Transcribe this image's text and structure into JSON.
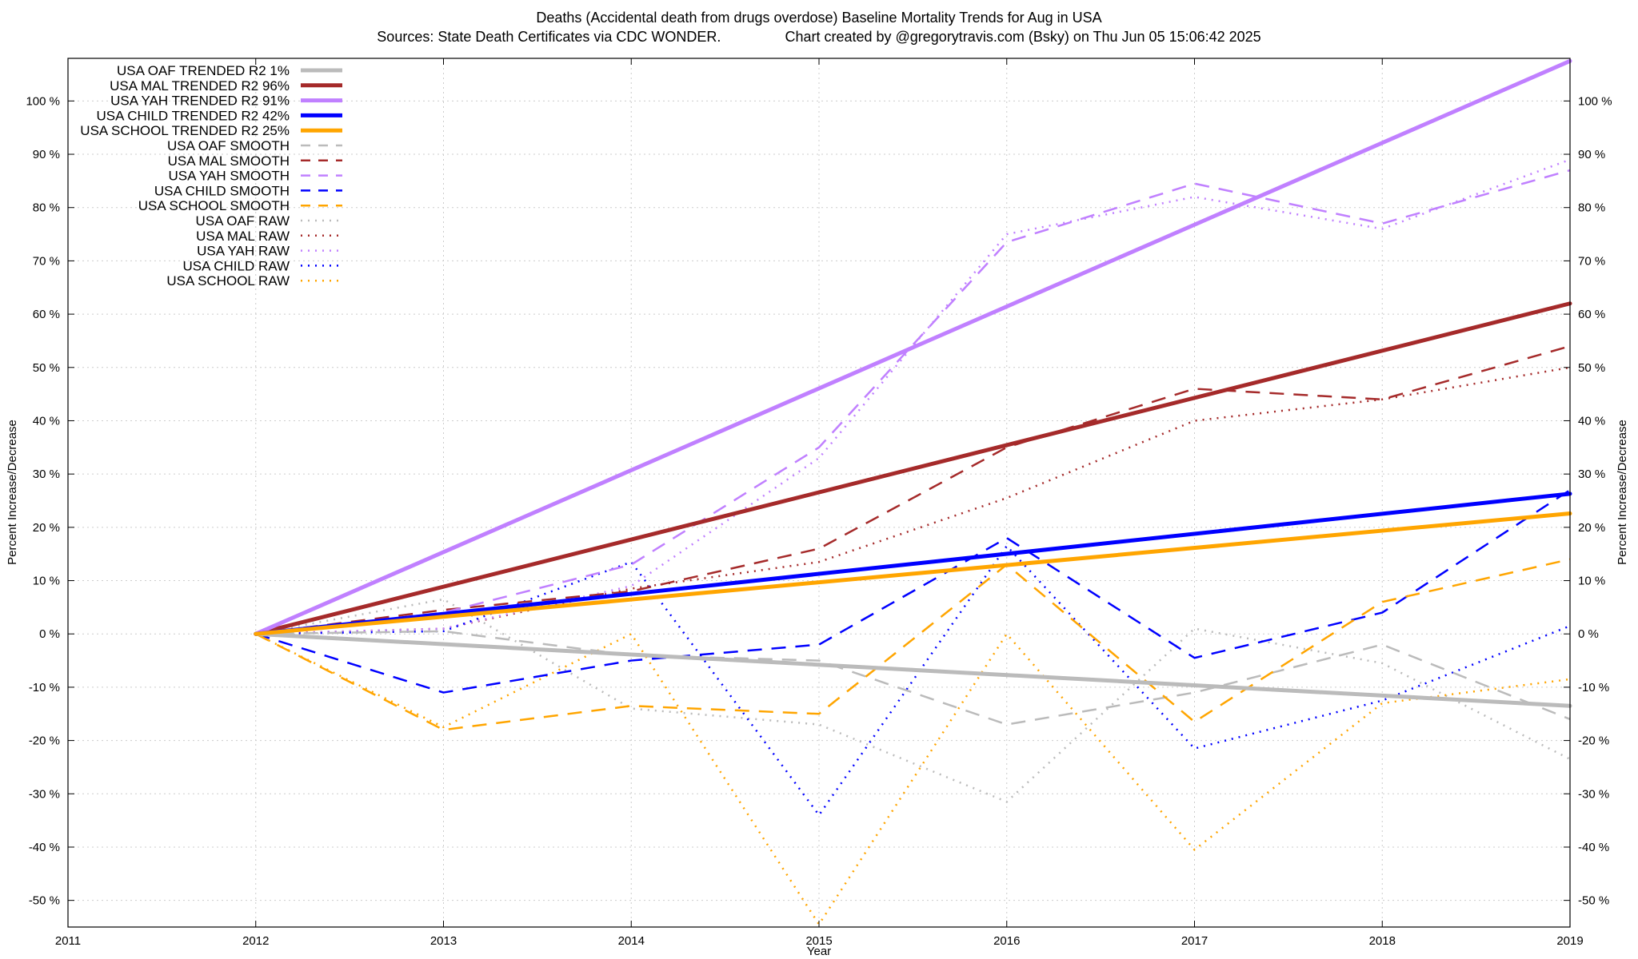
{
  "chart_data": {
    "type": "line",
    "title": "Deaths (Accidental death from drugs overdose)  Baseline Mortality Trends for Aug in USA",
    "subtitle": "Sources: State Death Certificates via CDC WONDER.                Chart created by @gregorytravis.com (Bsky) on Thu Jun 05 15:06:42 2025",
    "xlabel": "Year",
    "ylabel": "Percent Increase/Decrease",
    "xlim": [
      2011,
      2019
    ],
    "ylim": [
      -55,
      108
    ],
    "x_ticks": [
      "2011",
      "2012",
      "2013",
      "2014",
      "2015",
      "2016",
      "2017",
      "2018",
      "2019"
    ],
    "y_ticks": [
      {
        "value": 100,
        "label": "100 %"
      },
      {
        "value": 90,
        "label": "90 %"
      },
      {
        "value": 80,
        "label": "80 %"
      },
      {
        "value": 70,
        "label": "70 %"
      },
      {
        "value": 60,
        "label": "60 %"
      },
      {
        "value": 50,
        "label": "50 %"
      },
      {
        "value": 40,
        "label": "40 %"
      },
      {
        "value": 30,
        "label": "30 %"
      },
      {
        "value": 20,
        "label": "20 %"
      },
      {
        "value": 10,
        "label": "10 %"
      },
      {
        "value": 0,
        "label": "0 %"
      },
      {
        "value": -10,
        "label": "-10 %"
      },
      {
        "value": -20,
        "label": "-20 %"
      },
      {
        "value": -30,
        "label": "-30 %"
      },
      {
        "value": -40,
        "label": "-40 %"
      },
      {
        "value": -50,
        "label": "-50 %"
      }
    ],
    "grid": true,
    "legend_position": "top-left",
    "series": [
      {
        "name": "USA OAF TRENDED R2   1%",
        "style": "trend",
        "color": "#bbbbbb",
        "x": [
          2012,
          2019
        ],
        "y": [
          0,
          -13.5
        ]
      },
      {
        "name": "USA MAL TRENDED R2  96%",
        "style": "trend",
        "color": "#a52a2a",
        "x": [
          2012,
          2019
        ],
        "y": [
          0,
          62
        ]
      },
      {
        "name": "USA YAH TRENDED R2  91%",
        "style": "trend",
        "color": "#c080ff",
        "x": [
          2012,
          2019
        ],
        "y": [
          0,
          107.5
        ]
      },
      {
        "name": "USA CHILD TRENDED R2  42%",
        "style": "trend",
        "color": "#0000ff",
        "x": [
          2012,
          2019
        ],
        "y": [
          0,
          26.3
        ]
      },
      {
        "name": "USA SCHOOL TRENDED R2  25%",
        "style": "trend",
        "color": "#ffa500",
        "x": [
          2012,
          2019
        ],
        "y": [
          0,
          22.6
        ]
      },
      {
        "name": "USA OAF SMOOTH",
        "style": "smooth",
        "color": "#bbbbbb",
        "x": [
          2012,
          2013,
          2014,
          2015,
          2016,
          2017,
          2018,
          2019
        ],
        "y": [
          0,
          0.5,
          -4,
          -5,
          -17,
          -11,
          -2,
          -16
        ]
      },
      {
        "name": "USA MAL SMOOTH",
        "style": "smooth",
        "color": "#a52a2a",
        "x": [
          2012,
          2013,
          2014,
          2015,
          2016,
          2017,
          2018,
          2019
        ],
        "y": [
          0,
          4.5,
          8,
          16,
          35,
          46,
          44,
          54
        ]
      },
      {
        "name": "USA YAH SMOOTH",
        "style": "smooth",
        "color": "#c080ff",
        "x": [
          2012,
          2013,
          2014,
          2015,
          2016,
          2017,
          2018,
          2019
        ],
        "y": [
          0,
          4,
          13,
          35,
          73.5,
          84.5,
          77,
          87
        ]
      },
      {
        "name": "USA CHILD SMOOTH",
        "style": "smooth",
        "color": "#0000ff",
        "x": [
          2012,
          2013,
          2014,
          2015,
          2016,
          2017,
          2018,
          2019
        ],
        "y": [
          0,
          -11,
          -5,
          -2,
          18,
          -4.5,
          4,
          27
        ]
      },
      {
        "name": "USA SCHOOL SMOOTH",
        "style": "smooth",
        "color": "#ffa500",
        "x": [
          2012,
          2013,
          2014,
          2015,
          2016,
          2017,
          2018,
          2019
        ],
        "y": [
          0,
          -18,
          -13.5,
          -15,
          13,
          -16.5,
          6,
          14
        ]
      },
      {
        "name": "USA OAF RAW",
        "style": "raw",
        "color": "#bbbbbb",
        "x": [
          2012,
          2013,
          2014,
          2015,
          2016,
          2017,
          2018,
          2019
        ],
        "y": [
          0,
          6.5,
          -14,
          -17,
          -31.5,
          1,
          -5.5,
          -23.5
        ]
      },
      {
        "name": "USA MAL RAW",
        "style": "raw",
        "color": "#a52a2a",
        "x": [
          2012,
          2013,
          2014,
          2015,
          2016,
          2017,
          2018,
          2019
        ],
        "y": [
          0,
          1,
          8.5,
          13.5,
          25.5,
          40,
          44,
          50
        ]
      },
      {
        "name": "USA YAH RAW",
        "style": "raw",
        "color": "#c080ff",
        "x": [
          2012,
          2013,
          2014,
          2015,
          2016,
          2017,
          2018,
          2019
        ],
        "y": [
          0,
          1,
          9,
          33,
          75,
          82,
          76,
          89
        ]
      },
      {
        "name": "USA CHILD RAW",
        "style": "raw",
        "color": "#0000ff",
        "x": [
          2012,
          2013,
          2014,
          2015,
          2016,
          2017,
          2018,
          2019
        ],
        "y": [
          0,
          0.5,
          13.5,
          -34,
          16.5,
          -21.5,
          -12.5,
          1.5
        ]
      },
      {
        "name": "USA SCHOOL RAW",
        "style": "raw",
        "color": "#ffa500",
        "x": [
          2012,
          2013,
          2014,
          2015,
          2016,
          2017,
          2018,
          2019
        ],
        "y": [
          0,
          -17.5,
          0,
          -54.5,
          0,
          -40.5,
          -13,
          -8.5
        ]
      }
    ]
  }
}
